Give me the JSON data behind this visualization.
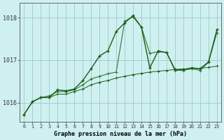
{
  "title": "Graphe pression niveau de la mer (hPa)",
  "background_color": "#cff0f0",
  "grid_color": "#a0c8c8",
  "line_color_dark": "#1a5c1a",
  "line_color_mid": "#2d7a2d",
  "x_labels": [
    "0",
    "1",
    "2",
    "3",
    "4",
    "5",
    "6",
    "7",
    "8",
    "9",
    "10",
    "11",
    "12",
    "13",
    "14",
    "15",
    "16",
    "17",
    "18",
    "19",
    "20",
    "21",
    "22",
    "23"
  ],
  "ylim": [
    1015.55,
    1018.35
  ],
  "yticks": [
    1016,
    1017,
    1018
  ],
  "series_top": [
    1015.72,
    1016.02,
    1016.12,
    1016.12,
    1016.3,
    1016.28,
    1016.32,
    1016.52,
    1016.8,
    1017.1,
    1017.22,
    1017.68,
    1017.88,
    1018.05,
    1017.78,
    1016.82,
    1017.22,
    1017.18,
    1016.78,
    1016.78,
    1016.82,
    1016.8,
    1016.96,
    1017.72
  ],
  "series_mid": [
    1015.72,
    1016.02,
    1016.12,
    1016.16,
    1016.26,
    1016.26,
    1016.3,
    1016.42,
    1016.56,
    1016.62,
    1016.68,
    1016.72,
    1017.92,
    1018.02,
    1017.78,
    1017.16,
    1017.2,
    1017.18,
    1016.76,
    1016.76,
    1016.8,
    1016.76,
    1016.95,
    1017.65
  ],
  "series_bot": [
    1015.72,
    1016.02,
    1016.12,
    1016.12,
    1016.2,
    1016.2,
    1016.26,
    1016.32,
    1016.42,
    1016.48,
    1016.52,
    1016.58,
    1016.62,
    1016.66,
    1016.69,
    1016.72,
    1016.74,
    1016.76,
    1016.78,
    1016.79,
    1016.8,
    1016.81,
    1016.83,
    1016.86
  ]
}
